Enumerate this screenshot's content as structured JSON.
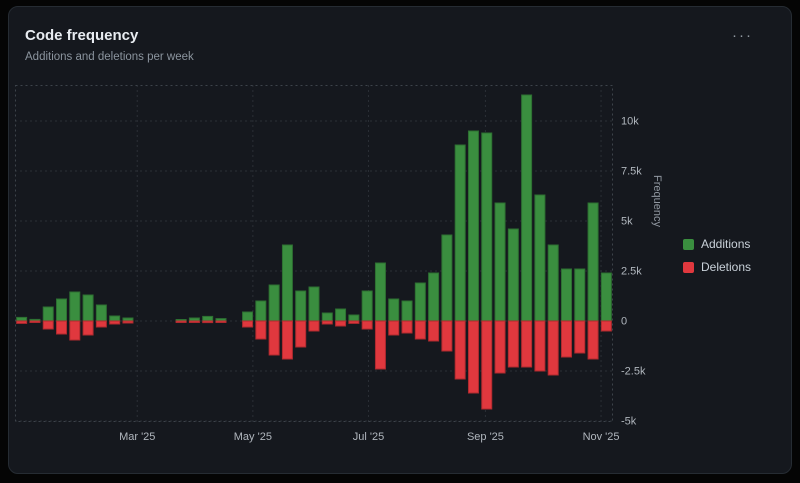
{
  "card": {
    "title": "Code frequency",
    "subtitle": "Additions and deletions per week",
    "menu_icon": "kebab-horizontal-icon",
    "menu_glyph": "···"
  },
  "chart_data": {
    "type": "bar",
    "title": "Code frequency",
    "subtitle": "Additions and deletions per week",
    "xlabel": "",
    "ylabel": "Frequency",
    "legend_position": "right",
    "grid": true,
    "x_unit": "week",
    "weeks": 45,
    "ylim": [
      -5000,
      11800
    ],
    "yticks": [
      {
        "value": 10000,
        "label": "10k"
      },
      {
        "value": 7500,
        "label": "7.5k"
      },
      {
        "value": 5000,
        "label": "5k"
      },
      {
        "value": 2500,
        "label": "2.5k"
      },
      {
        "value": 0,
        "label": "0"
      },
      {
        "value": -2500,
        "label": "-2.5k"
      },
      {
        "value": -5000,
        "label": "-5k"
      }
    ],
    "xticks": [
      {
        "week": 9.2,
        "label": "Mar '25"
      },
      {
        "week": 17.9,
        "label": "May '25"
      },
      {
        "week": 26.6,
        "label": "Jul '25"
      },
      {
        "week": 35.4,
        "label": "Sep '25"
      },
      {
        "week": 44.1,
        "label": "Nov '25"
      }
    ],
    "series": [
      {
        "name": "Additions",
        "color": "#3a8e3f",
        "stroke": "#2d7032",
        "values": [
          180,
          80,
          700,
          1100,
          1450,
          1300,
          800,
          250,
          150,
          0,
          0,
          0,
          30,
          150,
          230,
          120,
          0,
          450,
          1000,
          1800,
          3800,
          1500,
          1700,
          400,
          600,
          300,
          1500,
          2900,
          1100,
          1000,
          1900,
          2400,
          4300,
          8800,
          9500,
          9400,
          5900,
          4600,
          11300,
          6300,
          3800,
          2600,
          2600,
          5900,
          2400
        ]
      },
      {
        "name": "Deletions",
        "color": "#e0383e",
        "stroke": "#b02a2f",
        "values": [
          -120,
          -50,
          -400,
          -650,
          -950,
          -700,
          -300,
          -150,
          -100,
          0,
          0,
          0,
          -20,
          -60,
          -80,
          -50,
          0,
          -300,
          -900,
          -1700,
          -1900,
          -1300,
          -500,
          -150,
          -250,
          -120,
          -400,
          -2400,
          -700,
          -600,
          -900,
          -1000,
          -1500,
          -2900,
          -3600,
          -4400,
          -2600,
          -2300,
          -2300,
          -2500,
          -2700,
          -1800,
          -1600,
          -1900,
          -500
        ]
      }
    ]
  }
}
